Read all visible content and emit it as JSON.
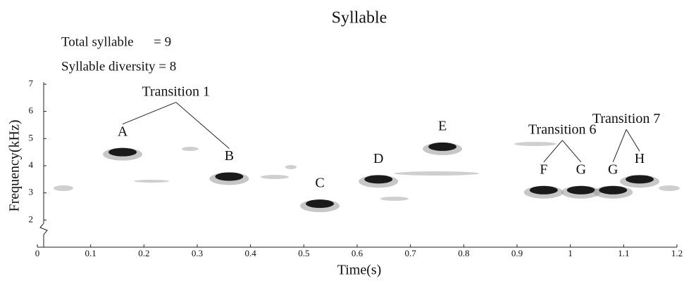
{
  "chart_data": {
    "type": "spectrogram",
    "title": "Syllable",
    "stats": [
      "Total syllable      = 9",
      "Syllable diversity = 8"
    ],
    "xlabel": "Time(s)",
    "ylabel": "Frequency(kHz)",
    "xlim": [
      0,
      1.2
    ],
    "xticks": [
      0,
      0.1,
      0.2,
      0.3,
      0.4,
      0.5,
      0.6,
      0.7,
      0.8,
      0.9,
      1.0,
      1.1,
      1.2
    ],
    "ylim": [
      1,
      7
    ],
    "yticks": [
      2,
      3,
      4,
      5,
      6,
      7
    ],
    "color": "#1a1a1a",
    "segments": [
      {
        "label": "Transition 1",
        "syllables": [
          {
            "label": "A",
            "time": 0.16,
            "frequency": 4.5
          },
          {
            "label": "B",
            "time": 0.36,
            "frequency": 3.6
          }
        ]
      },
      {
        "syllables": [
          {
            "label": "C",
            "time": 0.53,
            "frequency": 2.6
          },
          {
            "label": "D",
            "time": 0.64,
            "frequency": 3.5
          },
          {
            "label": "E",
            "time": 0.76,
            "frequency": 4.7
          }
        ]
      },
      {
        "label": "Transition 6",
        "syllables": [
          {
            "label": "F",
            "time": 0.95,
            "frequency": 3.1
          },
          {
            "label": "G",
            "time": 1.02,
            "frequency": 3.1
          }
        ]
      },
      {
        "label": "Transition 7",
        "syllables": [
          {
            "label": "G",
            "time": 1.08,
            "frequency": 3.1
          },
          {
            "label": "H",
            "time": 1.13,
            "frequency": 3.5
          }
        ]
      }
    ]
  }
}
